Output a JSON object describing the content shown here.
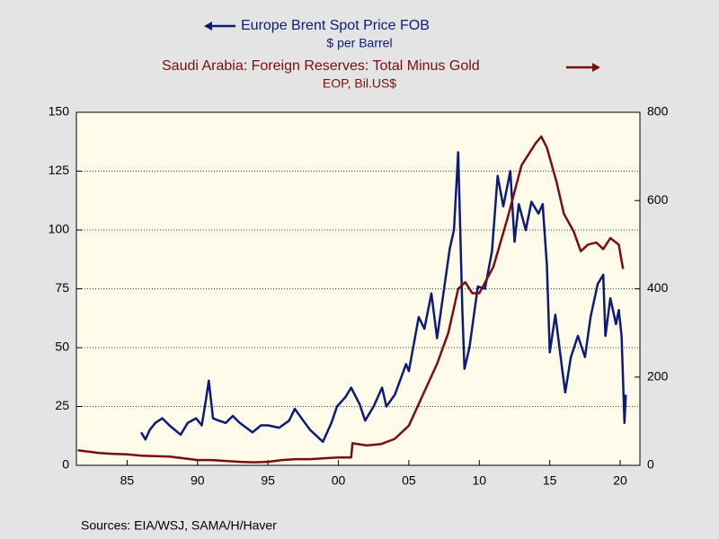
{
  "chart_data": {
    "type": "line",
    "series": [
      {
        "name": "Europe Brent Spot Price FOB",
        "unit": "$ per Barrel",
        "color": "#0c1a7a",
        "axis": "y",
        "x": [
          1986.0,
          1986.3,
          1986.6,
          1987.0,
          1987.5,
          1988.0,
          1988.8,
          1989.3,
          1989.9,
          1990.3,
          1990.6,
          1990.8,
          1991.1,
          1991.5,
          1992.0,
          1992.5,
          1993.0,
          1993.9,
          1994.5,
          1995.0,
          1995.8,
          1996.5,
          1996.9,
          1997.5,
          1998.0,
          1998.9,
          1999.5,
          1999.9,
          2000.5,
          2000.9,
          2001.5,
          2001.9,
          2002.5,
          2003.1,
          2003.4,
          2004.0,
          2004.8,
          2005.0,
          2005.7,
          2006.1,
          2006.6,
          2007.0,
          2007.5,
          2007.9,
          2008.2,
          2008.5,
          2008.8,
          2008.95,
          2009.3,
          2009.9,
          2010.4,
          2010.9,
          2011.3,
          2011.7,
          2012.2,
          2012.5,
          2012.8,
          2013.3,
          2013.7,
          2014.2,
          2014.5,
          2014.8,
          2015.0,
          2015.4,
          2015.9,
          2016.1,
          2016.5,
          2017.0,
          2017.5,
          2017.9,
          2018.4,
          2018.8,
          2018.95,
          2019.3,
          2019.7,
          2019.9,
          2020.1,
          2020.3,
          2020.4
        ],
        "values": [
          14,
          11,
          15,
          18,
          20,
          17,
          13,
          18,
          20,
          17,
          28,
          36,
          20,
          19,
          18,
          21,
          18,
          14,
          17,
          17,
          16,
          19,
          24,
          19,
          15,
          10,
          18,
          25,
          29,
          33,
          26,
          19,
          25,
          33,
          25,
          30,
          43,
          40,
          63,
          58,
          73,
          54,
          75,
          92,
          100,
          133,
          65,
          41,
          50,
          76,
          75,
          91,
          123,
          110,
          125,
          95,
          111,
          100,
          112,
          107,
          111,
          85,
          48,
          64,
          40,
          31,
          46,
          55,
          46,
          63,
          77,
          81,
          55,
          71,
          60,
          66,
          55,
          18,
          30
        ]
      },
      {
        "name": "Saudi Arabia: Foreign Reserves: Total Minus Gold",
        "unit": "EOP, Bil.US$",
        "color": "#7a0e0e",
        "axis": "y2",
        "x": [
          1981.5,
          1983,
          1984,
          1985,
          1986,
          1987,
          1988,
          1989,
          1990,
          1991,
          1992,
          1993,
          1994,
          1995,
          1996,
          1997,
          1998,
          1999,
          2000,
          2000.9,
          2001.0,
          2002,
          2003,
          2004,
          2005,
          2006,
          2007,
          2007.8,
          2008.5,
          2009.0,
          2009.5,
          2010,
          2011,
          2012,
          2013,
          2014,
          2014.4,
          2014.8,
          2015.5,
          2016,
          2016.7,
          2017.2,
          2017.7,
          2018.3,
          2018.8,
          2019.3,
          2019.9,
          2020.2
        ],
        "values": [
          34,
          28,
          26,
          25,
          22,
          21,
          20,
          16,
          12,
          12,
          10,
          8,
          7,
          8,
          12,
          14,
          14,
          16,
          18,
          18,
          50,
          45,
          48,
          60,
          90,
          160,
          230,
          300,
          400,
          415,
          390,
          390,
          450,
          560,
          680,
          730,
          745,
          720,
          640,
          570,
          530,
          485,
          500,
          505,
          490,
          515,
          500,
          445
        ]
      }
    ],
    "xlim": [
      1981.4,
      2021.4
    ],
    "xticks": [
      {
        "value": 1985,
        "label": "85"
      },
      {
        "value": 1990,
        "label": "90"
      },
      {
        "value": 1995,
        "label": "95"
      },
      {
        "value": 2000,
        "label": "00"
      },
      {
        "value": 2005,
        "label": "05"
      },
      {
        "value": 2010,
        "label": "10"
      },
      {
        "value": 2015,
        "label": "15"
      },
      {
        "value": 2020,
        "label": "20"
      }
    ],
    "ylim": [
      0,
      150
    ],
    "yticks": [
      0,
      25,
      50,
      75,
      100,
      125,
      150
    ],
    "y2lim": [
      0,
      800
    ],
    "y2ticks": [
      0,
      200,
      400,
      600,
      800
    ],
    "grid": true,
    "source": "Sources:  EIA/WSJ, SAMA/H/Haver"
  }
}
